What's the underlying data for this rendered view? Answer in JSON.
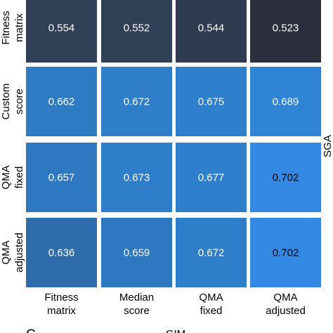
{
  "chart_data": {
    "type": "heatmap",
    "panel_label": "C",
    "xlabel": "GIM",
    "ylabel": "SGA",
    "x_categories": [
      [
        "Fitness",
        "matrix"
      ],
      [
        "Median",
        "score"
      ],
      [
        "QMA",
        "fixed"
      ],
      [
        "QMA",
        "adjusted"
      ]
    ],
    "y_categories": [
      [
        "Fitness",
        "matrix"
      ],
      [
        "Custom",
        "score"
      ],
      [
        "QMA",
        "fixed"
      ],
      [
        "QMA",
        "adjusted"
      ]
    ],
    "values": [
      [
        0.554,
        0.552,
        0.544,
        0.523
      ],
      [
        0.662,
        0.672,
        0.675,
        0.689
      ],
      [
        0.657,
        0.673,
        0.677,
        0.702
      ],
      [
        0.636,
        0.659,
        0.672,
        0.702
      ]
    ],
    "cell_colors": [
      [
        "#2f3f55",
        "#2f3f55",
        "#2f3b4f",
        "#2b2f3b"
      ],
      [
        "#2e7bc4",
        "#2e7ec9",
        "#2e80cc",
        "#2f84d6"
      ],
      [
        "#2d78c0",
        "#2e7ec9",
        "#2e80cc",
        "#3389e3"
      ],
      [
        "#2e6cab",
        "#2d78c0",
        "#2e7ec9",
        "#3389e3"
      ]
    ],
    "text_colors": [
      [
        "#ffffff",
        "#ffffff",
        "#ffffff",
        "#ffffff"
      ],
      [
        "#ffffff",
        "#ffffff",
        "#ffffff",
        "#ffffff"
      ],
      [
        "#ffffff",
        "#ffffff",
        "#ffffff",
        "#000000"
      ],
      [
        "#ffffff",
        "#ffffff",
        "#ffffff",
        "#000000"
      ]
    ],
    "legend": false,
    "grid": false
  }
}
